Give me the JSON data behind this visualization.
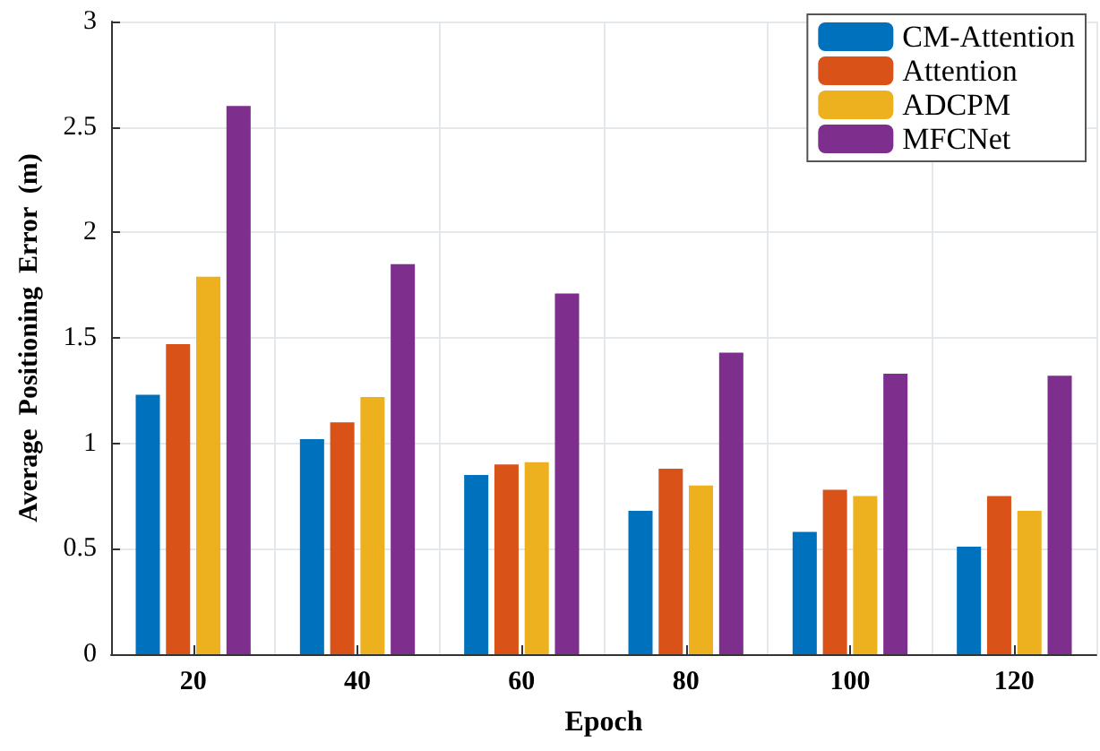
{
  "chart_data": {
    "type": "bar",
    "xlabel": "Epoch",
    "ylabel": "Average  Positioning  Error  (m)",
    "categories": [
      "20",
      "40",
      "60",
      "80",
      "100",
      "120"
    ],
    "series": [
      {
        "name": "CM-Attention",
        "color": "#0072bd",
        "values": [
          1.23,
          1.02,
          0.85,
          0.68,
          0.58,
          0.51
        ]
      },
      {
        "name": "Attention",
        "color": "#d95319",
        "values": [
          1.47,
          1.1,
          0.9,
          0.88,
          0.78,
          0.75
        ]
      },
      {
        "name": "ADCPM",
        "color": "#edb120",
        "values": [
          1.79,
          1.22,
          0.91,
          0.8,
          0.75,
          0.68
        ]
      },
      {
        "name": "MFCNet",
        "color": "#7e2f8e",
        "values": [
          2.6,
          1.85,
          1.71,
          1.43,
          1.33,
          1.32
        ]
      }
    ],
    "ylim": [
      0,
      3
    ],
    "yticks": [
      0,
      0.5,
      1,
      1.5,
      2,
      2.5,
      3
    ],
    "grid": true,
    "legend": "top right"
  }
}
